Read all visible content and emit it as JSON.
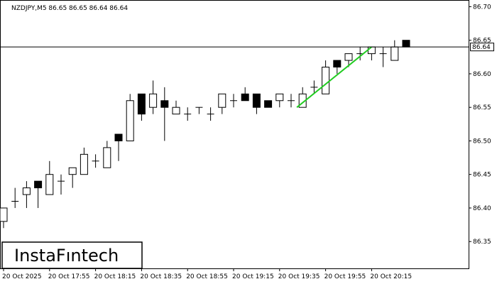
{
  "chart_data": {
    "type": "candlestick",
    "symbol_info": "NZDJPY,M5  86.65 86.65 86.64 86.64",
    "y_ticks": [
      "86.70",
      "86.65",
      "86.60",
      "86.55",
      "86.50",
      "86.45",
      "86.40",
      "86.35"
    ],
    "ylim": [
      86.31,
      86.71
    ],
    "x_ticks": [
      "20 Oct 2025",
      "20 Oct 17:55",
      "20 Oct 18:15",
      "20 Oct 18:35",
      "20 Oct 18:55",
      "20 Oct 19:15",
      "20 Oct 19:35",
      "20 Oct 19:55",
      "20 Oct 20:15"
    ],
    "x_tick_candle_index": [
      0,
      4,
      8,
      12,
      16,
      20,
      24,
      28,
      32
    ],
    "current_price": "86.64",
    "current_price_value": 86.64,
    "trend_line": {
      "from": [
        25.5,
        86.55
      ],
      "to": [
        32,
        86.64
      ],
      "color": "#22cc22"
    },
    "candles": [
      {
        "o": 86.38,
        "h": 86.4,
        "l": 86.37,
        "c": 86.4
      },
      {
        "o": 86.41,
        "h": 86.43,
        "l": 86.4,
        "c": 86.41
      },
      {
        "o": 86.42,
        "h": 86.44,
        "l": 86.4,
        "c": 86.43
      },
      {
        "o": 86.44,
        "h": 86.44,
        "l": 86.4,
        "c": 86.43
      },
      {
        "o": 86.42,
        "h": 86.47,
        "l": 86.42,
        "c": 86.45
      },
      {
        "o": 86.44,
        "h": 86.45,
        "l": 86.42,
        "c": 86.44
      },
      {
        "o": 86.45,
        "h": 86.46,
        "l": 86.43,
        "c": 86.46
      },
      {
        "o": 86.45,
        "h": 86.49,
        "l": 86.45,
        "c": 86.48
      },
      {
        "o": 86.47,
        "h": 86.48,
        "l": 86.46,
        "c": 86.47
      },
      {
        "o": 86.46,
        "h": 86.5,
        "l": 86.46,
        "c": 86.49
      },
      {
        "o": 86.51,
        "h": 86.51,
        "l": 86.47,
        "c": 86.5
      },
      {
        "o": 86.5,
        "h": 86.57,
        "l": 86.5,
        "c": 86.56
      },
      {
        "o": 86.57,
        "h": 86.57,
        "l": 86.53,
        "c": 86.54
      },
      {
        "o": 86.55,
        "h": 86.59,
        "l": 86.54,
        "c": 86.57
      },
      {
        "o": 86.56,
        "h": 86.58,
        "l": 86.5,
        "c": 86.55
      },
      {
        "o": 86.54,
        "h": 86.56,
        "l": 86.54,
        "c": 86.55
      },
      {
        "o": 86.54,
        "h": 86.55,
        "l": 86.53,
        "c": 86.54
      },
      {
        "o": 86.55,
        "h": 86.55,
        "l": 86.54,
        "c": 86.55
      },
      {
        "o": 86.54,
        "h": 86.55,
        "l": 86.53,
        "c": 86.54
      },
      {
        "o": 86.55,
        "h": 86.57,
        "l": 86.54,
        "c": 86.57
      },
      {
        "o": 86.56,
        "h": 86.57,
        "l": 86.55,
        "c": 86.56
      },
      {
        "o": 86.57,
        "h": 86.58,
        "l": 86.56,
        "c": 86.56
      },
      {
        "o": 86.57,
        "h": 86.57,
        "l": 86.54,
        "c": 86.55
      },
      {
        "o": 86.56,
        "h": 86.56,
        "l": 86.55,
        "c": 86.55
      },
      {
        "o": 86.56,
        "h": 86.57,
        "l": 86.55,
        "c": 86.57
      },
      {
        "o": 86.56,
        "h": 86.57,
        "l": 86.55,
        "c": 86.56
      },
      {
        "o": 86.55,
        "h": 86.58,
        "l": 86.55,
        "c": 86.57
      },
      {
        "o": 86.58,
        "h": 86.59,
        "l": 86.57,
        "c": 86.58
      },
      {
        "o": 86.57,
        "h": 86.62,
        "l": 86.57,
        "c": 86.61
      },
      {
        "o": 86.62,
        "h": 86.62,
        "l": 86.6,
        "c": 86.61
      },
      {
        "o": 86.62,
        "h": 86.63,
        "l": 86.61,
        "c": 86.63
      },
      {
        "o": 86.63,
        "h": 86.64,
        "l": 86.62,
        "c": 86.63
      },
      {
        "o": 86.63,
        "h": 86.64,
        "l": 86.62,
        "c": 86.64
      },
      {
        "o": 86.63,
        "h": 86.64,
        "l": 86.61,
        "c": 86.63
      },
      {
        "o": 86.62,
        "h": 86.65,
        "l": 86.62,
        "c": 86.64
      },
      {
        "o": 86.65,
        "h": 86.65,
        "l": 86.64,
        "c": 86.64
      }
    ]
  },
  "branding": {
    "logo_text": "InstaFıntech"
  }
}
